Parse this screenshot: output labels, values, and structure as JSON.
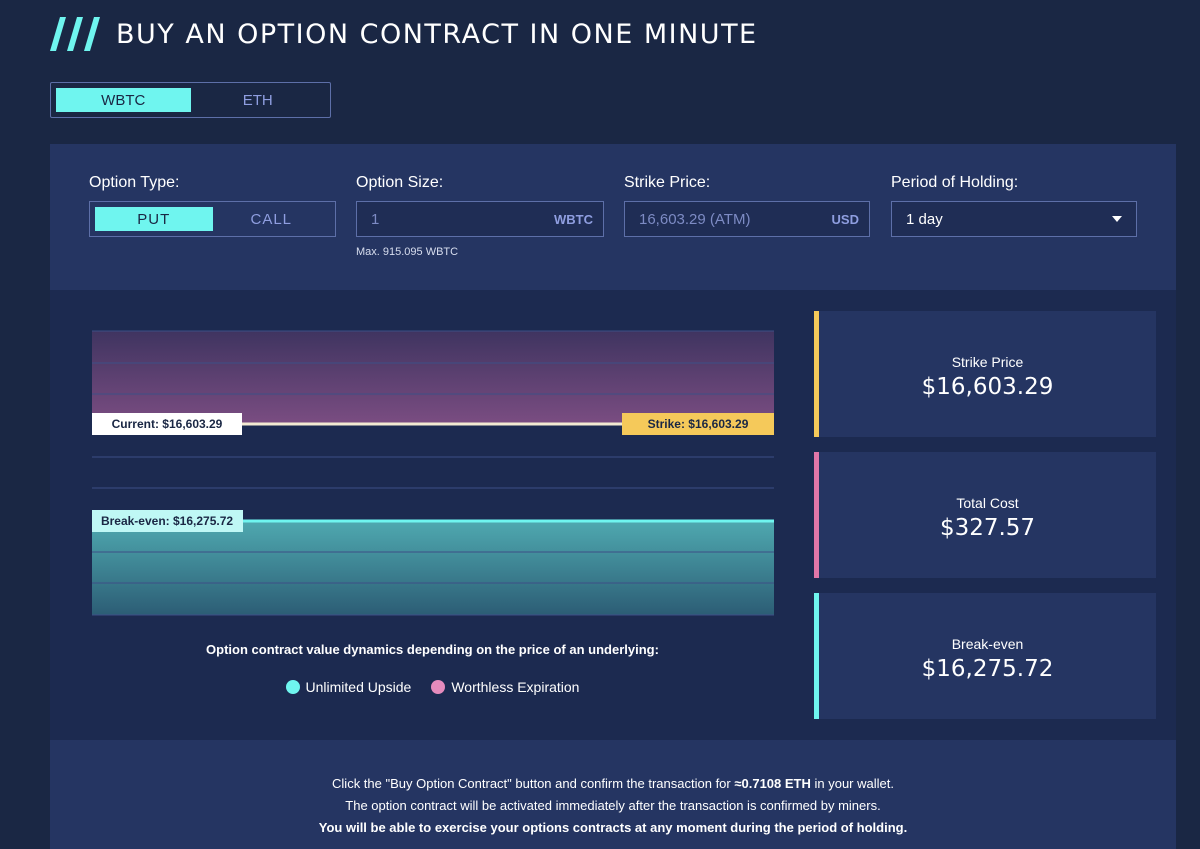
{
  "header": {
    "title": "BUY AN OPTION CONTRACT IN ONE MINUTE",
    "icon": "triple-slash-icon"
  },
  "asset_toggle": {
    "options": [
      "WBTC",
      "ETH"
    ],
    "selected": "WBTC"
  },
  "form": {
    "option_type": {
      "label": "Option Type:",
      "options": [
        "PUT",
        "CALL"
      ],
      "selected": "PUT"
    },
    "option_size": {
      "label": "Option Size:",
      "value": "1",
      "unit": "WBTC",
      "max_note": "Max. 915.095 WBTC"
    },
    "strike_price": {
      "label": "Strike Price:",
      "value": "16,603.29 (ATM)",
      "unit": "USD"
    },
    "period": {
      "label": "Period of Holding:",
      "value": "1 day"
    }
  },
  "chart": {
    "current_label": "Current: $16,603.29",
    "strike_label": "Strike: $16,603.29",
    "breakeven_label": "Break-even: $16,275.72",
    "caption": "Option contract value dynamics depending on the price of an underlying:",
    "legend": [
      {
        "label": "Unlimited Upside",
        "color": "#6ff5ef"
      },
      {
        "label": "Worthless Expiration",
        "color": "#e58bbd"
      }
    ]
  },
  "stats": [
    {
      "label": "Strike Price",
      "value": "$16,603.29",
      "color": "#f5c95a"
    },
    {
      "label": "Total Cost",
      "value": "$327.57",
      "color": "#e076a8"
    },
    {
      "label": "Break-even",
      "value": "$16,275.72",
      "color": "#6ff5ef"
    }
  ],
  "info": {
    "line1_pre": "Click the \"Buy Option Contract\" button and confirm the transaction for ",
    "line1_bold": "≈0.7108 ETH",
    "line1_post": " in your wallet.",
    "line2": "The option contract will be activated immediately after the transaction is confirmed by miners.",
    "line3": "You will be able to exercise your options contracts at any moment during the period of holding."
  },
  "colors": {
    "accent": "#6ff5ef",
    "strike": "#f5c95a",
    "pink": "#e076a8",
    "bg": "#1a2744",
    "panel": "#253562"
  }
}
